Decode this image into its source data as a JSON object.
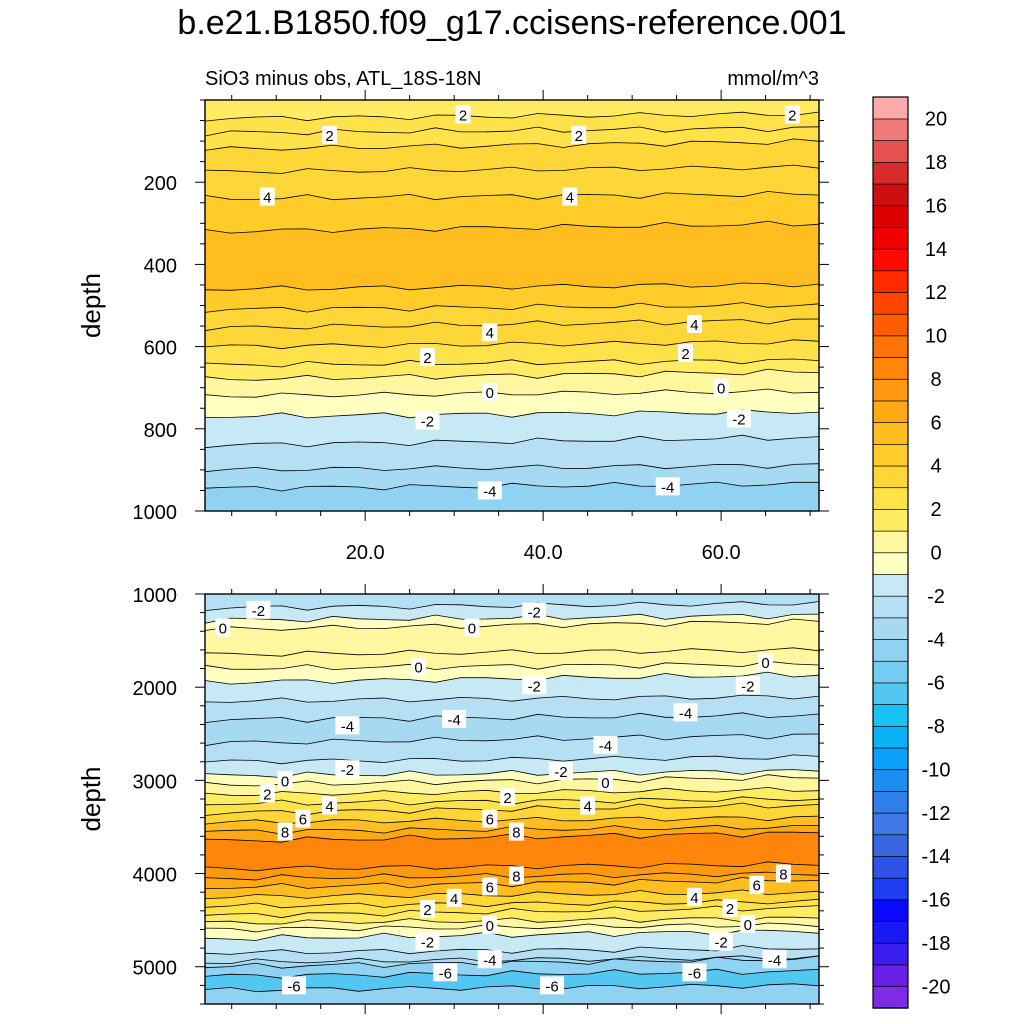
{
  "title": "b.e21.B1850.f09_g17.ccisens-reference.001",
  "chart_data": [
    {
      "type": "contour",
      "panel": "upper",
      "subtitle_left": "SiO3 minus obs, ATL_18S-18N",
      "subtitle_right": "mmol/m^3",
      "ylabel": "depth",
      "ylim": [
        0,
        1000
      ],
      "y_reversed": true,
      "yticks": [
        200,
        400,
        600,
        800,
        1000
      ],
      "ytick_labels": [
        "200",
        "400",
        "600",
        "800",
        "1000"
      ],
      "xlim": [
        2,
        71
      ],
      "xticks": [
        20,
        40,
        60
      ],
      "xtick_labels": [
        "20.0",
        "40.0",
        "60.0"
      ],
      "bands_by_depth": [
        {
          "from": 0,
          "to": 45,
          "value": 1.5
        },
        {
          "from": 45,
          "to": 80,
          "value": 2.0
        },
        {
          "from": 80,
          "to": 120,
          "value": 2.5
        },
        {
          "from": 120,
          "to": 175,
          "value": 3.0
        },
        {
          "from": 175,
          "to": 240,
          "value": 3.5
        },
        {
          "from": 240,
          "to": 320,
          "value": 4.5
        },
        {
          "from": 320,
          "to": 460,
          "value": 5.0
        },
        {
          "from": 460,
          "to": 510,
          "value": 4.5
        },
        {
          "from": 510,
          "to": 555,
          "value": 3.5
        },
        {
          "from": 555,
          "to": 600,
          "value": 3.0
        },
        {
          "from": 600,
          "to": 645,
          "value": 2.5
        },
        {
          "from": 645,
          "to": 680,
          "value": 1.5
        },
        {
          "from": 680,
          "to": 720,
          "value": 0.5
        },
        {
          "from": 720,
          "to": 770,
          "value": -0.5
        },
        {
          "from": 770,
          "to": 840,
          "value": -1.5
        },
        {
          "from": 840,
          "to": 900,
          "value": -2.5
        },
        {
          "from": 900,
          "to": 945,
          "value": -3.5
        },
        {
          "from": 945,
          "to": 1000,
          "value": -4.5
        }
      ],
      "contour_labels": [
        {
          "x": 31,
          "depth": 35,
          "text": "2"
        },
        {
          "x": 68,
          "depth": 35,
          "text": "2"
        },
        {
          "x": 16,
          "depth": 85,
          "text": "2"
        },
        {
          "x": 44,
          "depth": 85,
          "text": "2"
        },
        {
          "x": 9,
          "depth": 235,
          "text": "4"
        },
        {
          "x": 43,
          "depth": 235,
          "text": "4"
        },
        {
          "x": 34,
          "depth": 565,
          "text": "4"
        },
        {
          "x": 57,
          "depth": 545,
          "text": "4"
        },
        {
          "x": 27,
          "depth": 625,
          "text": "2"
        },
        {
          "x": 56,
          "depth": 615,
          "text": "2"
        },
        {
          "x": 34,
          "depth": 710,
          "text": "0"
        },
        {
          "x": 60,
          "depth": 700,
          "text": "0"
        },
        {
          "x": 27,
          "depth": 780,
          "text": "-2"
        },
        {
          "x": 62,
          "depth": 775,
          "text": "-2"
        },
        {
          "x": 34,
          "depth": 950,
          "text": "-4"
        },
        {
          "x": 54,
          "depth": 940,
          "text": "-4"
        }
      ]
    },
    {
      "type": "contour",
      "panel": "lower",
      "ylabel": "depth",
      "ylim": [
        1000,
        5400
      ],
      "y_reversed": true,
      "yticks": [
        1000,
        2000,
        3000,
        4000,
        5000
      ],
      "ytick_labels": [
        "1000",
        "2000",
        "3000",
        "4000",
        "5000"
      ],
      "xlim": [
        2,
        71
      ],
      "bands_by_depth": [
        {
          "from": 1000,
          "to": 1150,
          "value": -2.5
        },
        {
          "from": 1150,
          "to": 1280,
          "value": -1.5
        },
        {
          "from": 1280,
          "to": 1380,
          "value": -0.5
        },
        {
          "from": 1380,
          "to": 1650,
          "value": 0.5
        },
        {
          "from": 1650,
          "to": 1800,
          "value": 0.5
        },
        {
          "from": 1800,
          "to": 1950,
          "value": -0.5
        },
        {
          "from": 1950,
          "to": 2150,
          "value": -1.5
        },
        {
          "from": 2150,
          "to": 2350,
          "value": -2.5
        },
        {
          "from": 2350,
          "to": 2600,
          "value": -3.5
        },
        {
          "from": 2600,
          "to": 2800,
          "value": -2.5
        },
        {
          "from": 2800,
          "to": 2950,
          "value": -1.5
        },
        {
          "from": 2950,
          "to": 3050,
          "value": -0.5
        },
        {
          "from": 3050,
          "to": 3150,
          "value": 0.5
        },
        {
          "from": 3150,
          "to": 3250,
          "value": 1.5
        },
        {
          "from": 3250,
          "to": 3350,
          "value": 2.5
        },
        {
          "from": 3350,
          "to": 3450,
          "value": 3.5
        },
        {
          "from": 3450,
          "to": 3550,
          "value": 5.0
        },
        {
          "from": 3550,
          "to": 3650,
          "value": 6.5
        },
        {
          "from": 3650,
          "to": 3950,
          "value": 8.5
        },
        {
          "from": 3950,
          "to": 4050,
          "value": 7.5
        },
        {
          "from": 4050,
          "to": 4150,
          "value": 6.5
        },
        {
          "from": 4150,
          "to": 4250,
          "value": 5.0
        },
        {
          "from": 4250,
          "to": 4350,
          "value": 3.5
        },
        {
          "from": 4350,
          "to": 4450,
          "value": 2.5
        },
        {
          "from": 4450,
          "to": 4530,
          "value": 1.5
        },
        {
          "from": 4530,
          "to": 4600,
          "value": 0.5
        },
        {
          "from": 4600,
          "to": 4700,
          "value": -0.5
        },
        {
          "from": 4700,
          "to": 4850,
          "value": -1.5
        },
        {
          "from": 4850,
          "to": 4950,
          "value": -2.5
        },
        {
          "from": 4950,
          "to": 5000,
          "value": -3.5
        },
        {
          "from": 5000,
          "to": 5100,
          "value": -5.0
        },
        {
          "from": 5100,
          "to": 5250,
          "value": -6.5
        },
        {
          "from": 5250,
          "to": 5400,
          "value": -5.0
        }
      ],
      "contour_labels": [
        {
          "x": 8,
          "depth": 1170,
          "text": "-2"
        },
        {
          "x": 39,
          "depth": 1190,
          "text": "-2"
        },
        {
          "x": 4,
          "depth": 1360,
          "text": "0"
        },
        {
          "x": 32,
          "depth": 1360,
          "text": "0"
        },
        {
          "x": 26,
          "depth": 1780,
          "text": "0"
        },
        {
          "x": 65,
          "depth": 1730,
          "text": "0"
        },
        {
          "x": 39,
          "depth": 1980,
          "text": "-2"
        },
        {
          "x": 63,
          "depth": 1980,
          "text": "-2"
        },
        {
          "x": 30,
          "depth": 2340,
          "text": "-4"
        },
        {
          "x": 18,
          "depth": 2410,
          "text": "-4"
        },
        {
          "x": 56,
          "depth": 2270,
          "text": "-4"
        },
        {
          "x": 47,
          "depth": 2620,
          "text": "-4"
        },
        {
          "x": 18,
          "depth": 2880,
          "text": "-2"
        },
        {
          "x": 42,
          "depth": 2900,
          "text": "-2"
        },
        {
          "x": 11,
          "depth": 3000,
          "text": "0"
        },
        {
          "x": 47,
          "depth": 3020,
          "text": "0"
        },
        {
          "x": 9,
          "depth": 3140,
          "text": "2"
        },
        {
          "x": 36,
          "depth": 3180,
          "text": "2"
        },
        {
          "x": 16,
          "depth": 3270,
          "text": "4"
        },
        {
          "x": 45,
          "depth": 3270,
          "text": "4"
        },
        {
          "x": 13,
          "depth": 3410,
          "text": "6"
        },
        {
          "x": 34,
          "depth": 3410,
          "text": "6"
        },
        {
          "x": 11,
          "depth": 3550,
          "text": "8"
        },
        {
          "x": 37,
          "depth": 3550,
          "text": "8"
        },
        {
          "x": 37,
          "depth": 4020,
          "text": "8"
        },
        {
          "x": 67,
          "depth": 4000,
          "text": "8"
        },
        {
          "x": 34,
          "depth": 4140,
          "text": "6"
        },
        {
          "x": 64,
          "depth": 4120,
          "text": "6"
        },
        {
          "x": 30,
          "depth": 4260,
          "text": "4"
        },
        {
          "x": 57,
          "depth": 4250,
          "text": "4"
        },
        {
          "x": 27,
          "depth": 4380,
          "text": "2"
        },
        {
          "x": 61,
          "depth": 4370,
          "text": "2"
        },
        {
          "x": 34,
          "depth": 4550,
          "text": "0"
        },
        {
          "x": 63,
          "depth": 4540,
          "text": "0"
        },
        {
          "x": 27,
          "depth": 4730,
          "text": "-2"
        },
        {
          "x": 60,
          "depth": 4730,
          "text": "-2"
        },
        {
          "x": 34,
          "depth": 4920,
          "text": "-4"
        },
        {
          "x": 66,
          "depth": 4920,
          "text": "-4"
        },
        {
          "x": 29,
          "depth": 5060,
          "text": "-6"
        },
        {
          "x": 57,
          "depth": 5060,
          "text": "-6"
        },
        {
          "x": 12,
          "depth": 5200,
          "text": "-6"
        },
        {
          "x": 41,
          "depth": 5200,
          "text": "-6"
        }
      ]
    }
  ],
  "colorbar": {
    "levels": [
      -21,
      -20,
      -19,
      -18,
      -17,
      -16,
      -15,
      -14,
      -13,
      -12,
      -11,
      -10,
      -9,
      -8,
      -7,
      -6,
      -5,
      -4,
      -3,
      -2,
      -1,
      0,
      1,
      2,
      3,
      4,
      5,
      6,
      7,
      8,
      9,
      10,
      11,
      12,
      13,
      14,
      15,
      16,
      17,
      18,
      19,
      20,
      21
    ],
    "tick_labels": [
      "-20",
      "-18",
      "-16",
      "-14",
      "-12",
      "-10",
      "-8",
      "-6",
      "-4",
      "-2",
      "0",
      "2",
      "4",
      "6",
      "8",
      "10",
      "12",
      "14",
      "16",
      "18",
      "20"
    ],
    "colors": [
      "#7e2ae6",
      "#6a1fe8",
      "#3b1df0",
      "#1a19f5",
      "#0a0aff",
      "#1d3ef2",
      "#2e52e6",
      "#3a66e0",
      "#3f79e6",
      "#2f7fea",
      "#1b8ef0",
      "#0aa0f7",
      "#0ab3f5",
      "#19c1f5",
      "#54c6f2",
      "#75ccf0",
      "#8fd2f1",
      "#a5daf2",
      "#b5e0f4",
      "#c7e9f6",
      "#ffffc0",
      "#fff7a0",
      "#ffec62",
      "#ffe24a",
      "#ffd638",
      "#ffcc2a",
      "#ffbd1f",
      "#ffaa14",
      "#ff990f",
      "#ff860a",
      "#ff7205",
      "#ff5e00",
      "#ff4500",
      "#ff2a00",
      "#ff0a00",
      "#f00000",
      "#dd0000",
      "#cc1010",
      "#d82c2c",
      "#e65050",
      "#f07a7a",
      "#fbaaaa"
    ]
  }
}
